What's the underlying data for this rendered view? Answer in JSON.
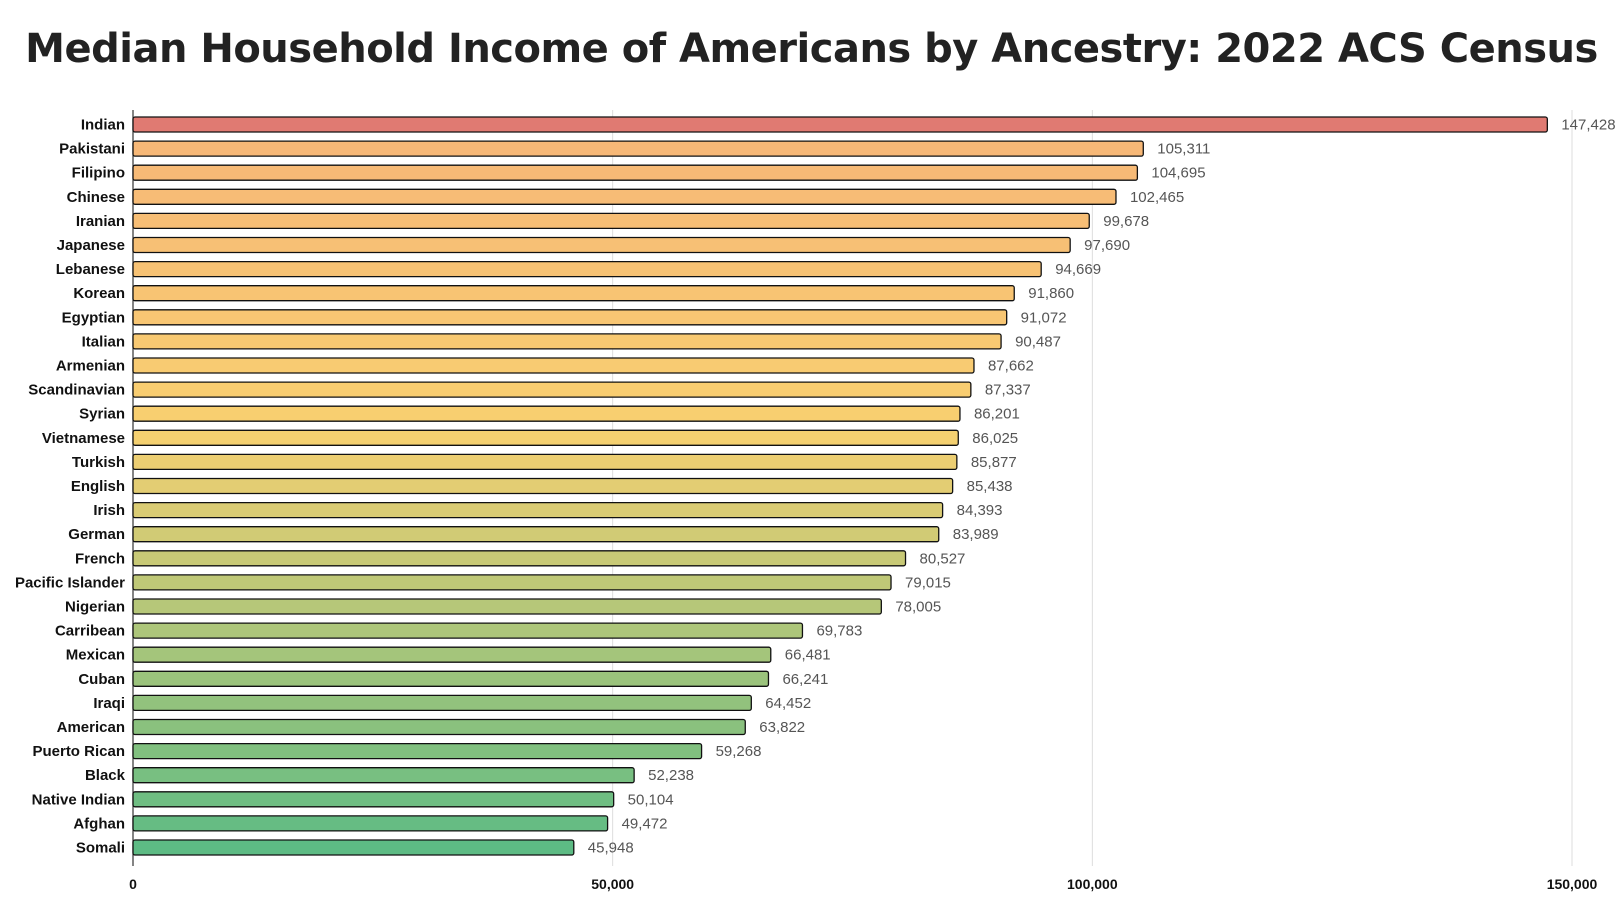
{
  "chart_data": {
    "type": "bar",
    "orientation": "horizontal",
    "title": "Median Household Income of Americans by Ancestry: 2022 ACS Census",
    "xlabel": "",
    "ylabel": "",
    "xlim": [
      0,
      150000
    ],
    "grid": true,
    "legend": "none",
    "ticks": [
      "0",
      "50,000",
      "100,000",
      "150,000"
    ],
    "tick_values": [
      0,
      50000,
      100000,
      150000
    ],
    "categories": [
      "Indian",
      "Pakistani",
      "Filipino",
      "Chinese",
      "Iranian",
      "Japanese",
      "Lebanese",
      "Korean",
      "Egyptian",
      "Italian",
      "Armenian",
      "Scandinavian",
      "Syrian",
      "Vietnamese",
      "Turkish",
      "English",
      "Irish",
      "German",
      "French",
      "Pacific Islander",
      "Nigerian",
      "Carribean",
      "Mexican",
      "Cuban",
      "Iraqi",
      "American",
      "Puerto Rican",
      "Black",
      "Native Indian",
      "Afghan",
      "Somali"
    ],
    "values": [
      147428,
      105311,
      104695,
      102465,
      99678,
      97690,
      94669,
      91860,
      91072,
      90487,
      87662,
      87337,
      86201,
      86025,
      85877,
      85438,
      84393,
      83989,
      80527,
      79015,
      78005,
      69783,
      66481,
      66241,
      64452,
      63822,
      59268,
      52238,
      50104,
      49472,
      45948
    ],
    "value_labels": [
      "147,428",
      "105,311",
      "104,695",
      "102,465",
      "99,678",
      "97,690",
      "94,669",
      "91,860",
      "91,072",
      "90,487",
      "87,662",
      "87,337",
      "86,201",
      "86,025",
      "85,877",
      "85,438",
      "84,393",
      "83,989",
      "80,527",
      "79,015",
      "78,005",
      "69,783",
      "66,481",
      "66,241",
      "64,452",
      "63,822",
      "59,268",
      "52,238",
      "50,104",
      "49,472",
      "45,948"
    ],
    "colors": {
      "top": "#e07a72",
      "high": "#f7b877",
      "mid": "#f8d070",
      "low": "#5dbb84",
      "gridline": "#dddddd",
      "bar_outline": "#111111"
    }
  }
}
